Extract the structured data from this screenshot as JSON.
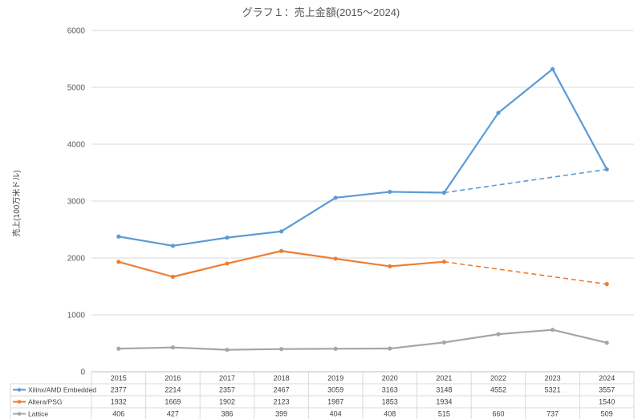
{
  "chart_data": {
    "type": "line",
    "title": "グラフ１：売上金額(2015～2024)",
    "ylabel": "売上(100万米ドル)",
    "xlabel": "",
    "ylim": [
      0,
      6000
    ],
    "yticks": [
      0,
      1000,
      2000,
      3000,
      4000,
      5000,
      6000
    ],
    "grid": true,
    "legend": "data-table",
    "categories": [
      "2015",
      "2016",
      "2017",
      "2018",
      "2019",
      "2020",
      "2021",
      "2022",
      "2023",
      "2024"
    ],
    "series": [
      {
        "name": "Xilinx/AMD Embedded",
        "color": "#5b9bd5",
        "values": [
          2377,
          2214,
          2357,
          2467,
          3059,
          3163,
          3148,
          4552,
          5321,
          3557
        ]
      },
      {
        "name": "Altera/PSG",
        "color": "#ed7d31",
        "values": [
          1932,
          1669,
          1902,
          2123,
          1987,
          1853,
          1934,
          null,
          null,
          1540
        ]
      },
      {
        "name": "Lattice",
        "color": "#a5a5a5",
        "values": [
          406,
          427,
          386,
          399,
          404,
          408,
          515,
          660,
          737,
          509
        ]
      }
    ],
    "dashed_segments": [
      {
        "series": "Xilinx/AMD Embedded",
        "from": "2021",
        "to": "2024"
      },
      {
        "series": "Altera/PSG",
        "from": "2021",
        "to": "2024"
      }
    ]
  }
}
